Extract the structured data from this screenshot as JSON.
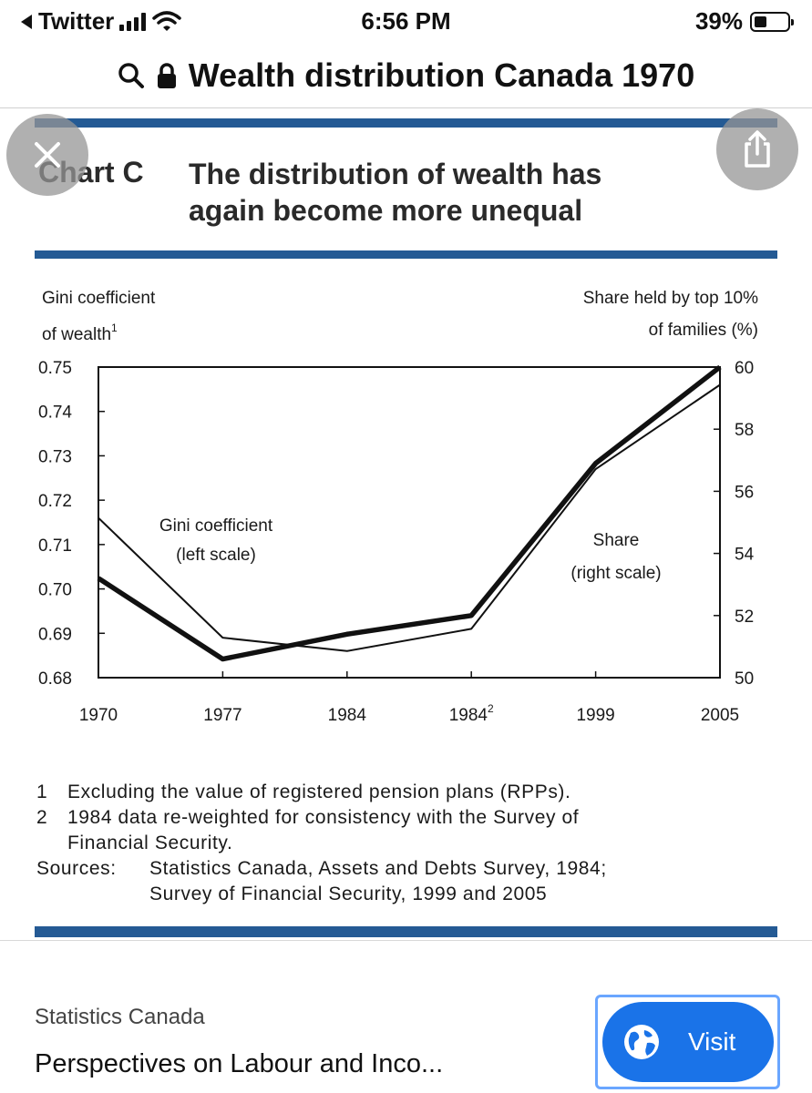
{
  "status_bar": {
    "back_app": "Twitter",
    "time": "6:56 PM",
    "battery": "39%",
    "battery_level": 0.39
  },
  "url_bar": {
    "title": "Wealth distribution Canada 1970"
  },
  "chart_header": {
    "label": "Chart C",
    "title": "The distribution of wealth has\nagain become more unequal"
  },
  "chart_data": {
    "type": "line",
    "title": "The distribution of wealth has again become more unequal",
    "ylabel_left_line1": "Gini coefficient",
    "ylabel_left_line2": "of wealth",
    "ylabel_left_sup": "1",
    "ylabel_right_line1": "Share held by top 10%",
    "ylabel_right_line2": "of families (%)",
    "categories": [
      "1970",
      "1977",
      "1984",
      "1984",
      "1999",
      "2005"
    ],
    "category_sups": [
      "",
      "",
      "",
      "2",
      "",
      ""
    ],
    "ylim_left": [
      0.68,
      0.75
    ],
    "ylim_right": [
      50,
      60
    ],
    "left_ticks": [
      "0.75",
      "0.74",
      "0.73",
      "0.72",
      "0.71",
      "0.70",
      "0.69",
      "0.68"
    ],
    "right_ticks": [
      "60",
      "58",
      "56",
      "54",
      "52",
      "50"
    ],
    "series": [
      {
        "name": "Gini coefficient",
        "axis": "left",
        "values": [
          0.716,
          0.689,
          0.686,
          0.691,
          0.727,
          0.746
        ]
      },
      {
        "name": "Share",
        "axis": "right",
        "values": [
          53.2,
          50.6,
          51.4,
          52.0,
          56.9,
          60.3
        ]
      }
    ],
    "annotations": {
      "gini_line1": "Gini coefficient",
      "gini_line2": "(left scale)",
      "share_line1": "Share",
      "share_line2": "(right scale)"
    }
  },
  "footnotes": {
    "n1": "1",
    "note1": "Excluding the value of registered pension plans (RPPs).",
    "n2": "2",
    "note2_line1": "1984 data re-weighted for consistency with the Survey of",
    "note2_line2": "Financial Security.",
    "sources_label": "Sources:",
    "sources_line1": "Statistics Canada, Assets and Debts Survey, 1984;",
    "sources_line2": "Survey of Financial Security, 1999 and 2005"
  },
  "result": {
    "source": "Statistics Canada",
    "page_title": "Perspectives on Labour and Inco...",
    "visit_label": "Visit"
  },
  "colors": {
    "accent_blue": "#245a94",
    "visit_button": "#1a73e8",
    "visit_outline": "#6aa6ff"
  }
}
